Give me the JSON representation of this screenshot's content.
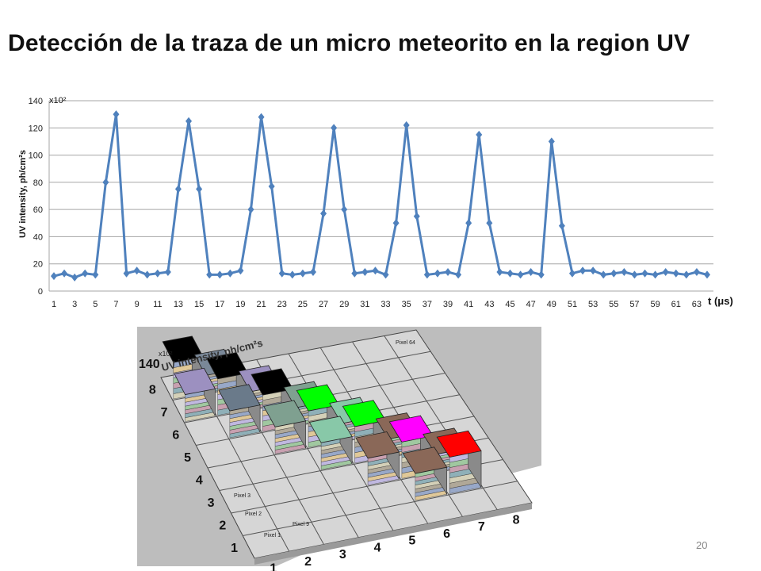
{
  "slide": {
    "title": "Detección de la traza de un micro meteorito en la region UV",
    "page_number": "20"
  },
  "chart_data": [
    {
      "type": "line",
      "ylabel": "UV intensity, ph/cm²s",
      "y_multiplier": "x10²",
      "xlabel": "t (μs)",
      "ylim": [
        0,
        140
      ],
      "yticks": [
        0,
        20,
        40,
        60,
        80,
        100,
        120,
        140
      ],
      "xticks": [
        1,
        3,
        5,
        7,
        9,
        11,
        13,
        15,
        17,
        19,
        21,
        23,
        25,
        27,
        29,
        31,
        33,
        35,
        37,
        39,
        41,
        43,
        45,
        47,
        49,
        51,
        53,
        55,
        57,
        59,
        61,
        63
      ],
      "grid": true,
      "series_color": "#4f81bd",
      "x": [
        1,
        2,
        3,
        4,
        5,
        6,
        7,
        8,
        9,
        10,
        11,
        12,
        13,
        14,
        15,
        16,
        17,
        18,
        19,
        20,
        21,
        22,
        23,
        24,
        25,
        26,
        27,
        28,
        29,
        30,
        31,
        32,
        33,
        34,
        35,
        36,
        37,
        38,
        39,
        40,
        41,
        42,
        43,
        44,
        45,
        46,
        47,
        48,
        49,
        50,
        51,
        52,
        53,
        54,
        55,
        56,
        57,
        58,
        59,
        60,
        61,
        62,
        63,
        64
      ],
      "values": [
        11,
        13,
        10,
        13,
        12,
        80,
        130,
        13,
        15,
        12,
        13,
        14,
        75,
        125,
        75,
        12,
        12,
        13,
        15,
        60,
        128,
        77,
        13,
        12,
        13,
        14,
        57,
        120,
        60,
        13,
        14,
        15,
        12,
        50,
        122,
        55,
        12,
        13,
        14,
        12,
        50,
        115,
        50,
        14,
        13,
        12,
        14,
        12,
        110,
        48,
        13,
        15,
        15,
        12,
        13,
        14,
        12,
        13,
        12,
        14,
        13,
        12,
        14,
        12
      ]
    },
    {
      "type": "bar",
      "subtype": "3d-pixel-matrix",
      "zlabel": "UV intensity, ph/cm²s",
      "z_multiplier": "x10²",
      "z_max_label": "140",
      "x_axis_ticks": [
        "1",
        "2",
        "3",
        "4",
        "5",
        "6",
        "7",
        "8"
      ],
      "y_axis_ticks": [
        "1",
        "2",
        "3",
        "4",
        "5",
        "6",
        "7",
        "8"
      ],
      "pixel_labels": [
        "Pixel 1",
        "Pixel 2",
        "Pixel 3",
        "Pixel 9",
        "Pixel 64"
      ],
      "bars": [
        {
          "x": 1,
          "y": 8,
          "top_color": "#000000",
          "level": "high"
        },
        {
          "x": 2,
          "y": 8,
          "top_color": "#7a8898",
          "level": "low"
        },
        {
          "x": 1,
          "y": 7,
          "top_color": "#9c90c0",
          "level": "mid"
        },
        {
          "x": 2,
          "y": 7,
          "top_color": "#000000",
          "level": "high"
        },
        {
          "x": 3,
          "y": 7,
          "top_color": "#9c90c0",
          "level": "low"
        },
        {
          "x": 2,
          "y": 6,
          "top_color": "#6a7a8a",
          "level": "mid"
        },
        {
          "x": 3,
          "y": 6,
          "top_color": "#000000",
          "level": "high"
        },
        {
          "x": 4,
          "y": 6,
          "top_color": "#7fa090",
          "level": "low"
        },
        {
          "x": 3,
          "y": 5,
          "top_color": "#7fa090",
          "level": "mid"
        },
        {
          "x": 4,
          "y": 5,
          "top_color": "#00ff00",
          "level": "high"
        },
        {
          "x": 5,
          "y": 5,
          "top_color": "#88c8a8",
          "level": "low"
        },
        {
          "x": 4,
          "y": 4,
          "top_color": "#88c8a8",
          "level": "mid"
        },
        {
          "x": 5,
          "y": 4,
          "top_color": "#00ff00",
          "level": "high"
        },
        {
          "x": 6,
          "y": 4,
          "top_color": "#8a6858",
          "level": "low"
        },
        {
          "x": 5,
          "y": 3,
          "top_color": "#8a6858",
          "level": "mid"
        },
        {
          "x": 6,
          "y": 3,
          "top_color": "#ff00ff",
          "level": "high"
        },
        {
          "x": 7,
          "y": 3,
          "top_color": "#8a6858",
          "level": "low"
        },
        {
          "x": 6,
          "y": 2,
          "top_color": "#8a6858",
          "level": "mid"
        },
        {
          "x": 7,
          "y": 2,
          "top_color": "#ff0000",
          "level": "high"
        }
      ]
    }
  ]
}
